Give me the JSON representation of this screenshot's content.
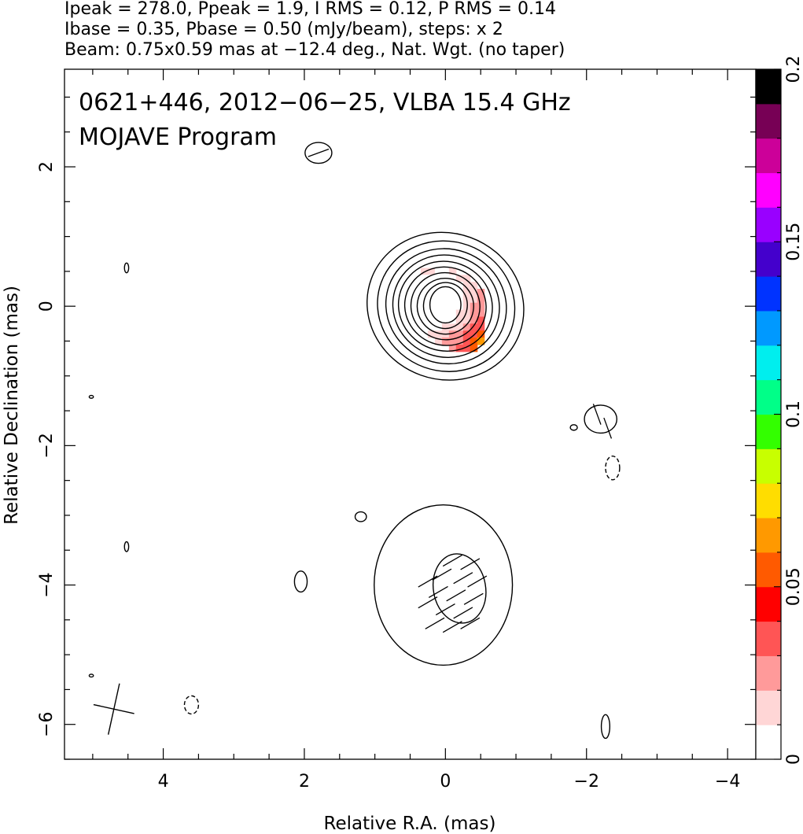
{
  "header": {
    "line1": "Ipeak = 278.0, Ppeak = 1.9, I RMS = 0.12, P RMS = 0.14",
    "line2": "Ibase = 0.35, Pbase = 0.50 (mJy/beam), steps: x 2",
    "line3": "Beam: 0.75x0.59 mas at −12.4 deg., Nat. Wgt. (no taper)"
  },
  "chart_data": {
    "type": "heatmap",
    "title": "0621+446, 2012−06−25, VLBA 15.4 GHz",
    "subtitle": "MOJAVE Program",
    "xlabel": "Relative R.A. (mas)",
    "ylabel": "Relative Declination (mas)",
    "xlim": [
      5.4,
      -4.4
    ],
    "ylim": [
      -6.5,
      3.4
    ],
    "xticks": [
      4,
      2,
      0,
      -2,
      -4
    ],
    "xtick_labels": [
      "4",
      "2",
      "0",
      "−2",
      "−4"
    ],
    "yticks": [
      2,
      0,
      -2,
      -4,
      -6
    ],
    "ytick_labels": [
      "2",
      "0",
      "−2",
      "−4",
      "−6"
    ],
    "colorbar": {
      "min": 0,
      "max": 0.2,
      "ticks": [
        0,
        0.05,
        0.1,
        0.15,
        0.2
      ],
      "tick_labels": [
        "0",
        "0.05",
        "0.1",
        "0.15",
        "0.2"
      ],
      "colors": [
        "#ffffff",
        "#ffd6d6",
        "#ff9a9a",
        "#ff5555",
        "#ff0000",
        "#ff5a00",
        "#ff9900",
        "#ffdd00",
        "#c8ff00",
        "#33ff00",
        "#00ff88",
        "#00eeee",
        "#0099ff",
        "#0033ff",
        "#4400cc",
        "#9900ff",
        "#ff00ff",
        "#cc0099",
        "#770055",
        "#000000"
      ]
    },
    "polarization_pixels": [
      {
        "x": 0.3,
        "y": 0.5,
        "v": 0.012
      },
      {
        "x": 0.2,
        "y": 0.5,
        "v": 0.012
      },
      {
        "x": 0.1,
        "y": 0.5,
        "v": 0.01
      },
      {
        "x": 0.0,
        "y": 0.5,
        "v": 0.01
      },
      {
        "x": -0.1,
        "y": 0.5,
        "v": 0.012
      },
      {
        "x": 0.3,
        "y": 0.4,
        "v": 0.01
      },
      {
        "x": 0.2,
        "y": 0.4,
        "v": 0.008
      },
      {
        "x": 0.1,
        "y": 0.4,
        "v": 0.008
      },
      {
        "x": 0.0,
        "y": 0.4,
        "v": 0.008
      },
      {
        "x": -0.1,
        "y": 0.4,
        "v": 0.01
      },
      {
        "x": -0.2,
        "y": 0.4,
        "v": 0.012
      },
      {
        "x": -0.3,
        "y": 0.4,
        "v": 0.015
      },
      {
        "x": 0.3,
        "y": 0.3,
        "v": 0.01
      },
      {
        "x": 0.2,
        "y": 0.3,
        "v": 0.007
      },
      {
        "x": 0.1,
        "y": 0.3,
        "v": 0.006
      },
      {
        "x": 0.0,
        "y": 0.3,
        "v": 0.006
      },
      {
        "x": -0.1,
        "y": 0.3,
        "v": 0.007
      },
      {
        "x": -0.2,
        "y": 0.3,
        "v": 0.01
      },
      {
        "x": -0.3,
        "y": 0.3,
        "v": 0.012
      },
      {
        "x": -0.4,
        "y": 0.3,
        "v": 0.016
      },
      {
        "x": 0.2,
        "y": 0.2,
        "v": 0.008
      },
      {
        "x": 0.1,
        "y": 0.2,
        "v": 0.006
      },
      {
        "x": 0.0,
        "y": 0.2,
        "v": 0.005
      },
      {
        "x": -0.1,
        "y": 0.2,
        "v": 0.006
      },
      {
        "x": -0.2,
        "y": 0.2,
        "v": 0.01
      },
      {
        "x": -0.3,
        "y": 0.2,
        "v": 0.014
      },
      {
        "x": -0.4,
        "y": 0.2,
        "v": 0.018
      },
      {
        "x": -0.5,
        "y": 0.2,
        "v": 0.024
      },
      {
        "x": 0.2,
        "y": 0.1,
        "v": 0.008
      },
      {
        "x": 0.1,
        "y": 0.1,
        "v": 0.005
      },
      {
        "x": 0.0,
        "y": 0.1,
        "v": 0.004
      },
      {
        "x": -0.1,
        "y": 0.1,
        "v": 0.005
      },
      {
        "x": -0.2,
        "y": 0.1,
        "v": 0.01
      },
      {
        "x": -0.3,
        "y": 0.1,
        "v": 0.015
      },
      {
        "x": -0.4,
        "y": 0.1,
        "v": 0.02
      },
      {
        "x": -0.5,
        "y": 0.1,
        "v": 0.025
      },
      {
        "x": 0.2,
        "y": 0.0,
        "v": 0.008
      },
      {
        "x": 0.1,
        "y": 0.0,
        "v": 0.005
      },
      {
        "x": 0.0,
        "y": 0.0,
        "v": 0.004
      },
      {
        "x": -0.1,
        "y": 0.0,
        "v": 0.006
      },
      {
        "x": -0.2,
        "y": 0.0,
        "v": 0.01
      },
      {
        "x": -0.3,
        "y": 0.0,
        "v": 0.016
      },
      {
        "x": -0.4,
        "y": 0.0,
        "v": 0.022
      },
      {
        "x": -0.5,
        "y": 0.0,
        "v": 0.027
      },
      {
        "x": 0.2,
        "y": -0.1,
        "v": 0.008
      },
      {
        "x": 0.1,
        "y": -0.1,
        "v": 0.006
      },
      {
        "x": 0.0,
        "y": -0.1,
        "v": 0.005
      },
      {
        "x": -0.1,
        "y": -0.1,
        "v": 0.007
      },
      {
        "x": -0.2,
        "y": -0.1,
        "v": 0.012
      },
      {
        "x": -0.3,
        "y": -0.1,
        "v": 0.018
      },
      {
        "x": -0.4,
        "y": -0.1,
        "v": 0.024
      },
      {
        "x": -0.5,
        "y": -0.1,
        "v": 0.028
      },
      {
        "x": 0.2,
        "y": -0.2,
        "v": 0.009
      },
      {
        "x": 0.1,
        "y": -0.2,
        "v": 0.007
      },
      {
        "x": 0.0,
        "y": -0.2,
        "v": 0.007
      },
      {
        "x": -0.1,
        "y": -0.2,
        "v": 0.01
      },
      {
        "x": -0.2,
        "y": -0.2,
        "v": 0.015
      },
      {
        "x": -0.3,
        "y": -0.2,
        "v": 0.02
      },
      {
        "x": -0.4,
        "y": -0.2,
        "v": 0.026
      },
      {
        "x": -0.5,
        "y": -0.2,
        "v": 0.03
      },
      {
        "x": 0.2,
        "y": -0.3,
        "v": 0.01
      },
      {
        "x": 0.1,
        "y": -0.3,
        "v": 0.01
      },
      {
        "x": 0.0,
        "y": -0.3,
        "v": 0.012
      },
      {
        "x": -0.1,
        "y": -0.3,
        "v": 0.015
      },
      {
        "x": -0.2,
        "y": -0.3,
        "v": 0.02
      },
      {
        "x": -0.3,
        "y": -0.3,
        "v": 0.025
      },
      {
        "x": -0.4,
        "y": -0.3,
        "v": 0.03
      },
      {
        "x": -0.5,
        "y": -0.3,
        "v": 0.034
      },
      {
        "x": 0.2,
        "y": -0.4,
        "v": 0.016
      },
      {
        "x": 0.1,
        "y": -0.4,
        "v": 0.018
      },
      {
        "x": 0.0,
        "y": -0.4,
        "v": 0.02
      },
      {
        "x": -0.1,
        "y": -0.4,
        "v": 0.022
      },
      {
        "x": -0.2,
        "y": -0.4,
        "v": 0.025
      },
      {
        "x": -0.3,
        "y": -0.4,
        "v": 0.03
      },
      {
        "x": -0.4,
        "y": -0.4,
        "v": 0.04
      },
      {
        "x": -0.5,
        "y": -0.4,
        "v": 0.05
      },
      {
        "x": 0.1,
        "y": -0.5,
        "v": 0.02
      },
      {
        "x": 0.0,
        "y": -0.5,
        "v": 0.022
      },
      {
        "x": -0.1,
        "y": -0.5,
        "v": 0.025
      },
      {
        "x": -0.2,
        "y": -0.5,
        "v": 0.028
      },
      {
        "x": -0.3,
        "y": -0.5,
        "v": 0.035
      },
      {
        "x": -0.4,
        "y": -0.5,
        "v": 0.052
      },
      {
        "x": -0.5,
        "y": -0.5,
        "v": 0.06
      },
      {
        "x": -0.1,
        "y": -0.6,
        "v": 0.025
      },
      {
        "x": -0.2,
        "y": -0.6,
        "v": 0.03
      },
      {
        "x": -0.3,
        "y": -0.6,
        "v": 0.04
      },
      {
        "x": -0.4,
        "y": -0.6,
        "v": 0.055
      }
    ],
    "core_contours": [
      {
        "cx": 0.0,
        "cy": 0.0,
        "rx": 1.12,
        "ry": 1.05,
        "tilt": 20
      },
      {
        "cx": -0.01,
        "cy": 0.0,
        "rx": 0.98,
        "ry": 0.93,
        "tilt": 20
      },
      {
        "cx": -0.01,
        "cy": 0.0,
        "rx": 0.86,
        "ry": 0.82,
        "tilt": 20
      },
      {
        "cx": -0.01,
        "cy": 0.0,
        "rx": 0.76,
        "ry": 0.73,
        "tilt": 20
      },
      {
        "cx": 0.0,
        "cy": 0.0,
        "rx": 0.67,
        "ry": 0.64,
        "tilt": 20
      },
      {
        "cx": 0.0,
        "cy": 0.0,
        "rx": 0.58,
        "ry": 0.56,
        "tilt": 20
      },
      {
        "cx": 0.0,
        "cy": 0.0,
        "rx": 0.49,
        "ry": 0.48,
        "tilt": 15
      },
      {
        "cx": 0.0,
        "cy": 0.0,
        "rx": 0.4,
        "ry": 0.4,
        "tilt": 10
      },
      {
        "cx": 0.0,
        "cy": 0.01,
        "rx": 0.31,
        "ry": 0.33,
        "tilt": 10
      },
      {
        "cx": 0.0,
        "cy": 0.02,
        "rx": 0.22,
        "ry": 0.26,
        "tilt": 0
      }
    ],
    "jet_contours": [
      {
        "cx": 0.03,
        "cy": -4.0,
        "rx": 0.98,
        "ry": 1.15,
        "tilt": 0
      },
      {
        "cx": -0.2,
        "cy": -4.05,
        "rx": 0.37,
        "ry": 0.5,
        "tilt": -10
      }
    ],
    "blobs": [
      {
        "cx": 1.8,
        "cy": 2.2,
        "rx": 0.19,
        "ry": 0.15,
        "dashed": false
      },
      {
        "cx": 4.52,
        "cy": 0.55,
        "rx": 0.03,
        "ry": 0.07,
        "dashed": false
      },
      {
        "cx": 5.02,
        "cy": -1.3,
        "rx": 0.03,
        "ry": 0.02,
        "dashed": false
      },
      {
        "cx": 4.52,
        "cy": -3.45,
        "rx": 0.03,
        "ry": 0.07,
        "dashed": false
      },
      {
        "cx": 5.02,
        "cy": -5.3,
        "rx": 0.03,
        "ry": 0.02,
        "dashed": false
      },
      {
        "cx": 3.6,
        "cy": -5.72,
        "rx": 0.1,
        "ry": 0.13,
        "dashed": true
      },
      {
        "cx": 2.05,
        "cy": -3.95,
        "rx": 0.09,
        "ry": 0.15,
        "dashed": false
      },
      {
        "cx": 1.2,
        "cy": -3.02,
        "rx": 0.08,
        "ry": 0.07,
        "dashed": false
      },
      {
        "cx": -2.2,
        "cy": -1.62,
        "rx": 0.23,
        "ry": 0.2,
        "dashed": false
      },
      {
        "cx": -1.82,
        "cy": -1.74,
        "rx": 0.05,
        "ry": 0.04,
        "dashed": false
      },
      {
        "cx": -2.37,
        "cy": -2.32,
        "rx": 0.1,
        "ry": 0.17,
        "dashed": true
      },
      {
        "cx": -2.27,
        "cy": -6.03,
        "rx": 0.06,
        "ry": 0.17,
        "dashed": false
      }
    ],
    "evpa_ticks": [
      {
        "x": 1.8,
        "y": 2.2,
        "ang": 20
      },
      {
        "x": -2.15,
        "y": -1.55,
        "ang": -70
      },
      {
        "x": -2.3,
        "y": -1.75,
        "ang": -70
      },
      {
        "x": -0.1,
        "y": -3.65,
        "ang": 30
      },
      {
        "x": -0.35,
        "y": -3.7,
        "ang": 30
      },
      {
        "x": 0.05,
        "y": -3.85,
        "ang": 30
      },
      {
        "x": -0.25,
        "y": -3.9,
        "ang": 30
      },
      {
        "x": -0.45,
        "y": -3.95,
        "ang": 30
      },
      {
        "x": 0.1,
        "y": -4.1,
        "ang": 30
      },
      {
        "x": -0.15,
        "y": -4.15,
        "ang": 30
      },
      {
        "x": -0.4,
        "y": -4.2,
        "ang": 30
      },
      {
        "x": 0.0,
        "y": -4.35,
        "ang": 30
      },
      {
        "x": -0.25,
        "y": -4.4,
        "ang": 30
      },
      {
        "x": 0.15,
        "y": -4.55,
        "ang": 30
      },
      {
        "x": -0.1,
        "y": -4.6,
        "ang": 30
      },
      {
        "x": -0.35,
        "y": -4.55,
        "ang": 30
      },
      {
        "x": 0.25,
        "y": -4.25,
        "ang": 30
      },
      {
        "x": 0.25,
        "y": -3.95,
        "ang": 30
      }
    ],
    "beam": {
      "x": 4.7,
      "y": -5.78,
      "major": 0.75,
      "minor": 0.59,
      "pa": -12.4
    }
  }
}
